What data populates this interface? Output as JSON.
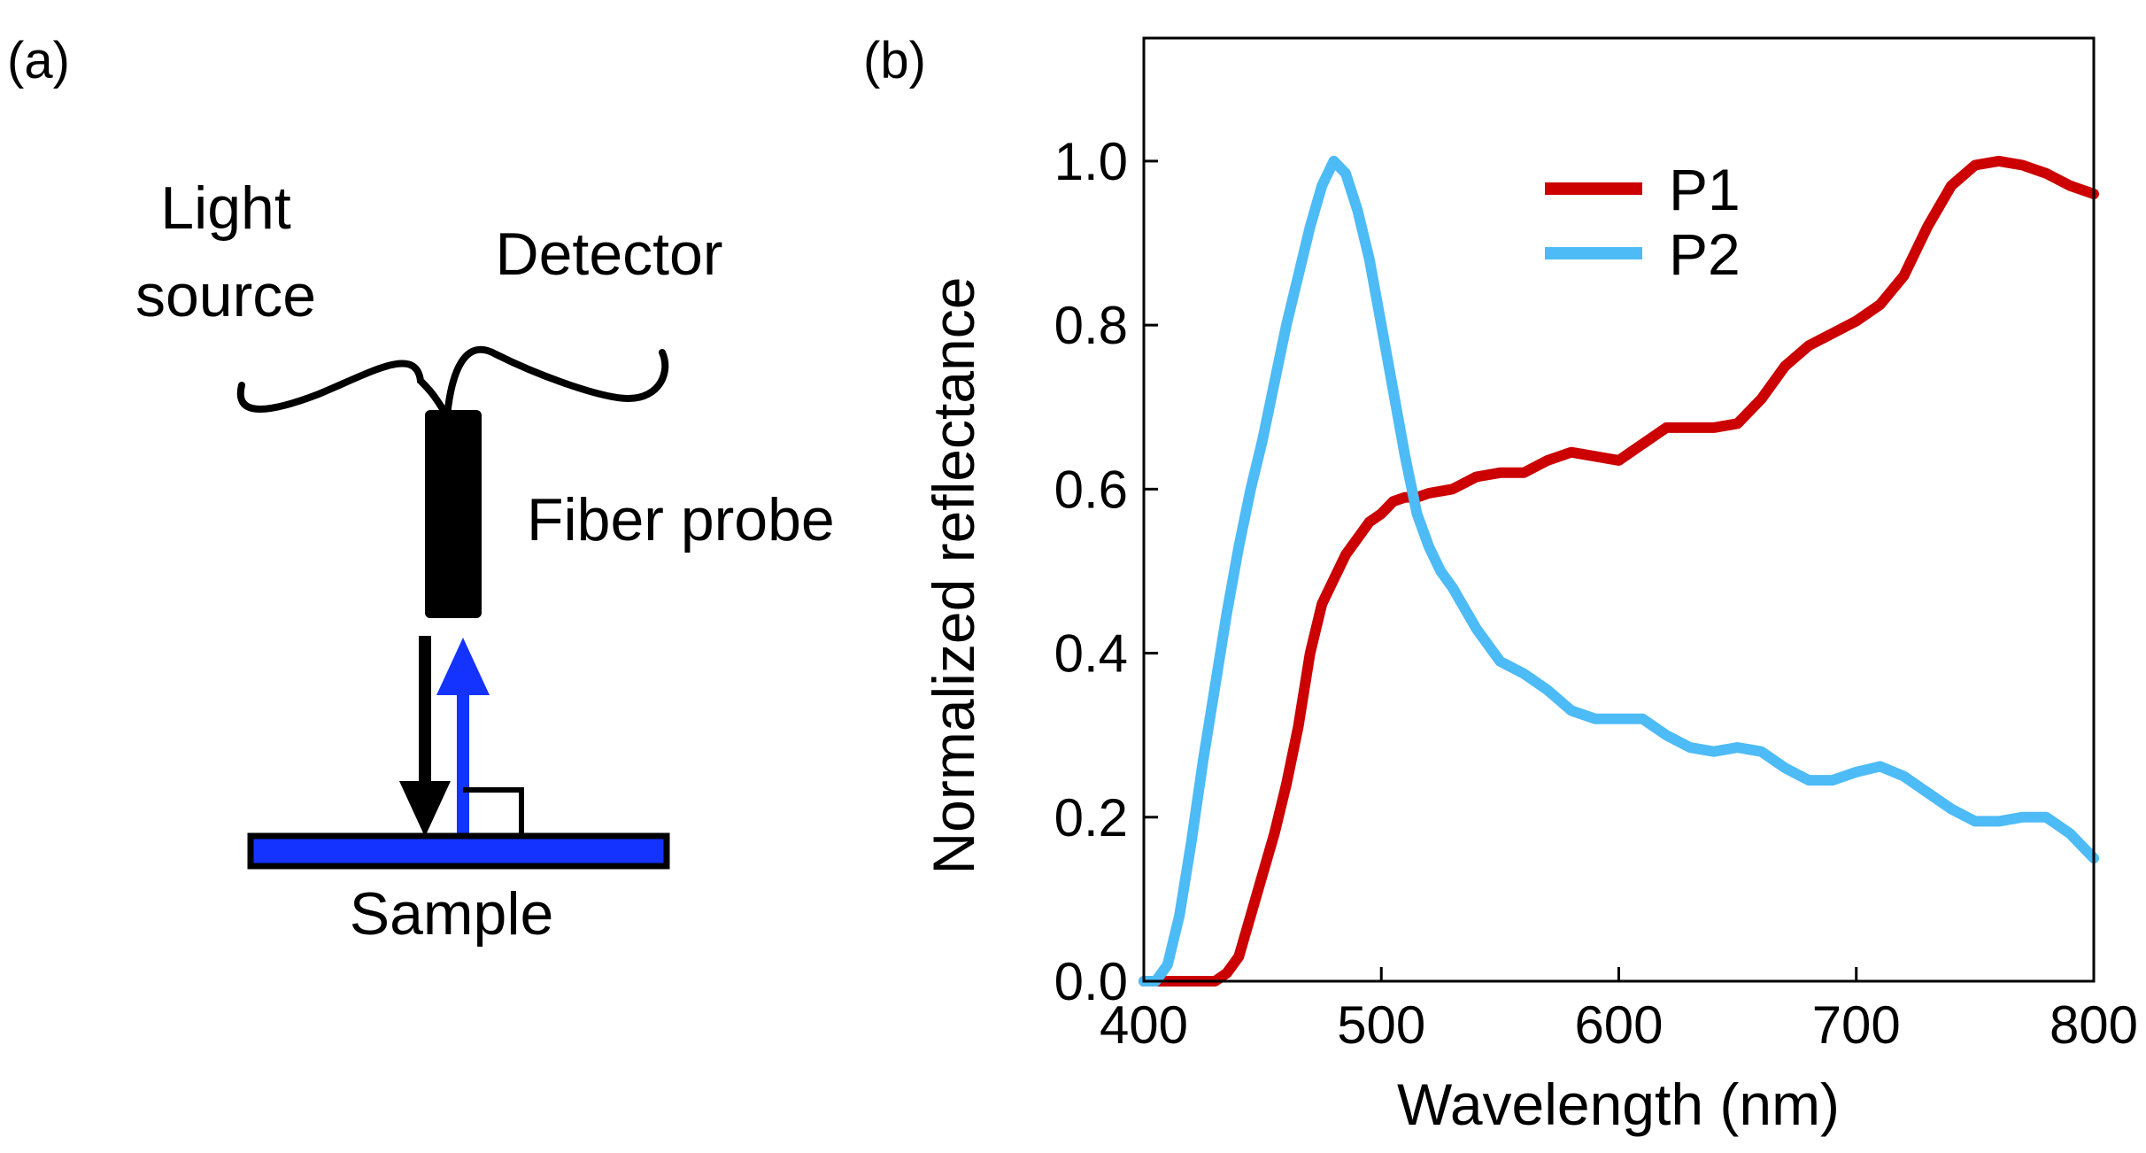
{
  "panel_a": {
    "label": "(a)",
    "light_source_line1": "Light",
    "light_source_line2": "source",
    "detector": "Detector",
    "fiber_probe": "Fiber probe",
    "sample": "Sample"
  },
  "panel_b": {
    "label": "(b)"
  },
  "chart_data": {
    "type": "line",
    "title": "",
    "xlabel": "Wavelength (nm)",
    "ylabel": "Normalized reflectance",
    "xlim": [
      400,
      800
    ],
    "ylim": [
      0,
      1.15
    ],
    "xticks": [
      400,
      500,
      600,
      700,
      800
    ],
    "xtick_labels": [
      "400",
      "500",
      "600",
      "700",
      "800"
    ],
    "yticks": [
      0,
      0.2,
      0.4,
      0.6,
      0.8,
      1.0
    ],
    "ytick_labels": [
      "0.0",
      "0.2",
      "0.4",
      "0.6",
      "0.8",
      "1.0"
    ],
    "grid": false,
    "legend_position": "top-right",
    "series": [
      {
        "name": "P1",
        "color": "#cc0000",
        "x": [
          400,
          410,
          420,
          430,
          435,
          440,
          445,
          450,
          455,
          460,
          465,
          470,
          475,
          480,
          485,
          490,
          495,
          500,
          505,
          510,
          515,
          520,
          530,
          540,
          550,
          560,
          570,
          580,
          590,
          600,
          610,
          620,
          630,
          640,
          650,
          660,
          670,
          680,
          690,
          700,
          710,
          720,
          730,
          740,
          750,
          760,
          770,
          780,
          790,
          800
        ],
        "y": [
          0,
          0,
          0,
          0,
          0.01,
          0.03,
          0.08,
          0.13,
          0.18,
          0.24,
          0.31,
          0.4,
          0.46,
          0.49,
          0.52,
          0.54,
          0.56,
          0.57,
          0.585,
          0.59,
          0.59,
          0.595,
          0.6,
          0.615,
          0.62,
          0.62,
          0.635,
          0.645,
          0.64,
          0.635,
          0.655,
          0.675,
          0.675,
          0.675,
          0.68,
          0.71,
          0.75,
          0.775,
          0.79,
          0.805,
          0.825,
          0.86,
          0.92,
          0.97,
          0.995,
          1.0,
          0.995,
          0.985,
          0.97,
          0.96
        ]
      },
      {
        "name": "P2",
        "color": "#4dbbf5",
        "x": [
          400,
          405,
          410,
          415,
          420,
          425,
          430,
          435,
          440,
          445,
          450,
          455,
          460,
          465,
          470,
          475,
          480,
          485,
          490,
          495,
          500,
          505,
          510,
          515,
          520,
          525,
          530,
          540,
          550,
          560,
          570,
          580,
          590,
          600,
          610,
          620,
          630,
          640,
          650,
          660,
          670,
          680,
          690,
          700,
          710,
          720,
          730,
          740,
          750,
          760,
          770,
          780,
          790,
          800
        ],
        "y": [
          0,
          0,
          0.02,
          0.08,
          0.17,
          0.27,
          0.36,
          0.45,
          0.53,
          0.6,
          0.66,
          0.73,
          0.8,
          0.86,
          0.92,
          0.97,
          1.0,
          0.985,
          0.94,
          0.88,
          0.8,
          0.72,
          0.64,
          0.57,
          0.53,
          0.5,
          0.48,
          0.43,
          0.39,
          0.375,
          0.355,
          0.33,
          0.32,
          0.32,
          0.32,
          0.3,
          0.285,
          0.28,
          0.285,
          0.28,
          0.26,
          0.245,
          0.245,
          0.255,
          0.262,
          0.25,
          0.23,
          0.21,
          0.195,
          0.195,
          0.2,
          0.2,
          0.18,
          0.15
        ]
      }
    ]
  }
}
